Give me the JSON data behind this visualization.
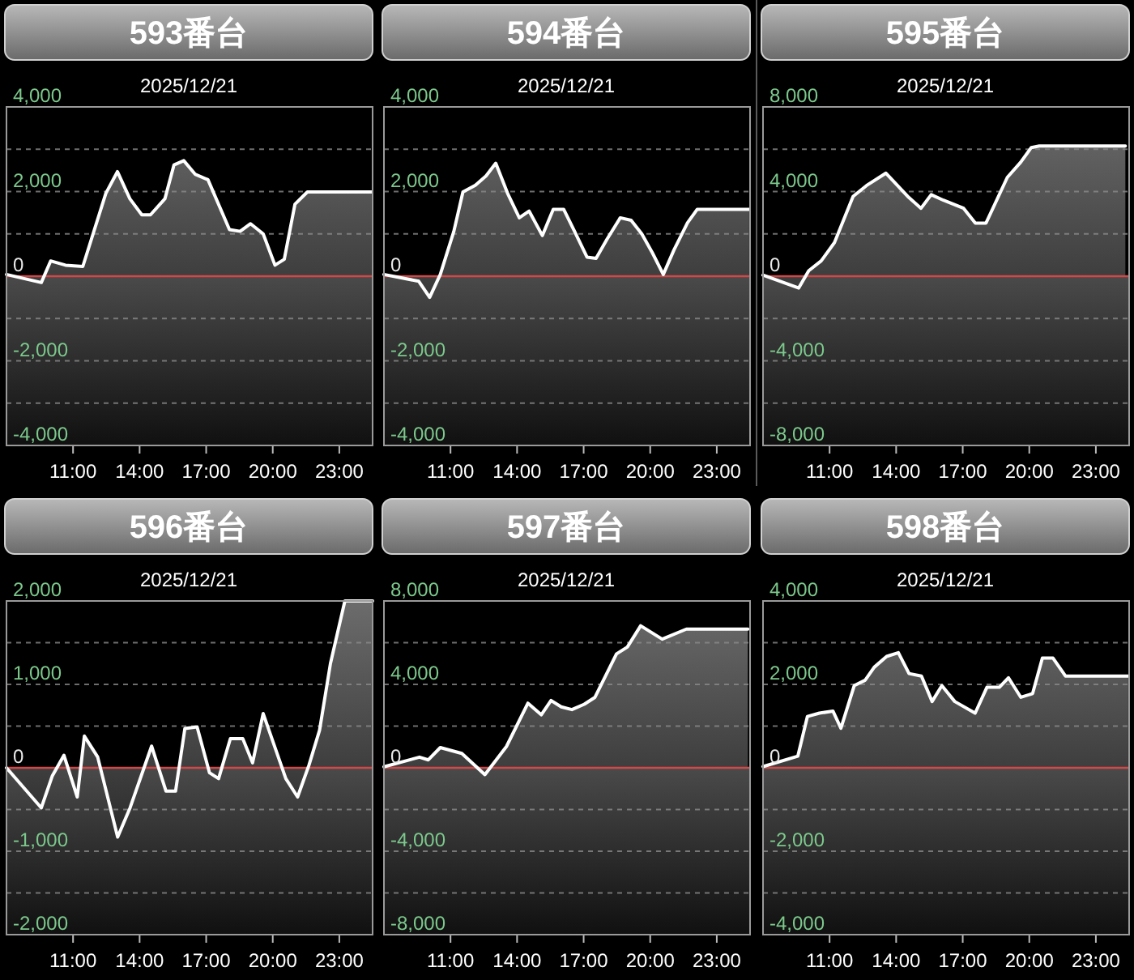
{
  "chart_data": [
    {
      "type": "area",
      "title": "593番台",
      "subtitle": "2025/12/21",
      "color": "#ffffff",
      "grid": "y",
      "xlim": [
        8,
        24.5
      ],
      "ylim": [
        -4000,
        4000
      ],
      "xticks": [
        {
          "value": 11,
          "label": "11:00"
        },
        {
          "value": 14,
          "label": "14:00"
        },
        {
          "value": 17,
          "label": "17:00"
        },
        {
          "value": 20,
          "label": "20:00"
        },
        {
          "value": 23,
          "label": "23:00"
        }
      ],
      "yticks": [
        {
          "value": -4000,
          "label": "-4,000"
        },
        {
          "value": -3000,
          "label": null
        },
        {
          "value": -2000,
          "label": "-2,000"
        },
        {
          "value": -1000,
          "label": null
        },
        {
          "value": 0,
          "label": "0"
        },
        {
          "value": 1000,
          "label": null
        },
        {
          "value": 2000,
          "label": "2,000"
        },
        {
          "value": 3000,
          "label": null
        },
        {
          "value": 4000,
          "label": "4,000"
        }
      ],
      "ref_lines": [
        {
          "axis": "y",
          "value": 0,
          "color": "#d04848"
        }
      ],
      "bands": [
        {
          "axis": "y",
          "from": -4000,
          "to": 0,
          "color": "#4a4a4a"
        }
      ],
      "x": [
        8.0,
        9.57,
        9.99,
        10.66,
        11.44,
        12.48,
        13.0,
        13.56,
        14.1,
        14.49,
        15.14,
        15.55,
        15.99,
        16.5,
        17.08,
        18.05,
        18.53,
        19.0,
        19.57,
        20.1,
        20.52,
        21.0,
        21.56,
        24.46
      ],
      "values": [
        40,
        -150,
        360,
        260,
        230,
        1960,
        2470,
        1830,
        1450,
        1450,
        1830,
        2630,
        2730,
        2410,
        2280,
        1100,
        1060,
        1240,
        1000,
        260,
        400,
        1700,
        1990,
        1990
      ]
    },
    {
      "type": "area",
      "title": "594番台",
      "subtitle": "2025/12/21",
      "color": "#ffffff",
      "grid": "y",
      "xlim": [
        8,
        24.5
      ],
      "ylim": [
        -4000,
        4000
      ],
      "xticks": [
        {
          "value": 11,
          "label": "11:00"
        },
        {
          "value": 14,
          "label": "14:00"
        },
        {
          "value": 17,
          "label": "17:00"
        },
        {
          "value": 20,
          "label": "20:00"
        },
        {
          "value": 23,
          "label": "23:00"
        }
      ],
      "yticks": [
        {
          "value": -4000,
          "label": "-4,000"
        },
        {
          "value": -3000,
          "label": null
        },
        {
          "value": -2000,
          "label": "-2,000"
        },
        {
          "value": -1000,
          "label": null
        },
        {
          "value": 0,
          "label": "0"
        },
        {
          "value": 1000,
          "label": null
        },
        {
          "value": 2000,
          "label": "2,000"
        },
        {
          "value": 3000,
          "label": null
        },
        {
          "value": 4000,
          "label": "4,000"
        }
      ],
      "ref_lines": [
        {
          "axis": "y",
          "value": 0,
          "color": "#d04848"
        }
      ],
      "bands": [
        {
          "axis": "y",
          "from": -4000,
          "to": 0,
          "color": "#4a4a4a"
        }
      ],
      "x": [
        8.0,
        9.57,
        10.06,
        10.54,
        11.15,
        11.56,
        12.12,
        12.6,
        13.04,
        13.57,
        14.1,
        14.54,
        15.14,
        15.63,
        16.1,
        16.59,
        17.15,
        17.56,
        18.05,
        18.65,
        19.14,
        19.62,
        20.1,
        20.59,
        21.07,
        21.68,
        22.12,
        24.46
      ],
      "values": [
        40,
        -120,
        -500,
        40,
        1060,
        1990,
        2150,
        2370,
        2670,
        1960,
        1380,
        1540,
        960,
        1580,
        1580,
        1060,
        450,
        420,
        870,
        1380,
        1320,
        1000,
        550,
        40,
        620,
        1260,
        1580,
        1580
      ]
    },
    {
      "type": "area",
      "title": "595番台",
      "subtitle": "2025/12/21",
      "color": "#ffffff",
      "grid": "y",
      "xlim": [
        8,
        24.5
      ],
      "ylim": [
        -8000,
        8000
      ],
      "xticks": [
        {
          "value": 11,
          "label": "11:00"
        },
        {
          "value": 14,
          "label": "14:00"
        },
        {
          "value": 17,
          "label": "17:00"
        },
        {
          "value": 20,
          "label": "20:00"
        },
        {
          "value": 23,
          "label": "23:00"
        }
      ],
      "yticks": [
        {
          "value": -8000,
          "label": "-8,000"
        },
        {
          "value": -6000,
          "label": null
        },
        {
          "value": -4000,
          "label": "-4,000"
        },
        {
          "value": -2000,
          "label": null
        },
        {
          "value": 0,
          "label": "0"
        },
        {
          "value": 2000,
          "label": null
        },
        {
          "value": 4000,
          "label": "4,000"
        },
        {
          "value": 6000,
          "label": null
        },
        {
          "value": 8000,
          "label": "8,000"
        }
      ],
      "ref_lines": [
        {
          "axis": "y",
          "value": 0,
          "color": "#d04848"
        }
      ],
      "bands": [
        {
          "axis": "y",
          "from": -8000,
          "to": 0,
          "color": "#4a4a4a"
        }
      ],
      "x": [
        8.0,
        9.61,
        10.06,
        10.62,
        11.22,
        12.06,
        12.66,
        13.54,
        14.57,
        15.12,
        15.58,
        16.13,
        17.04,
        17.57,
        18.05,
        19.01,
        19.61,
        20.09,
        20.45,
        24.33
      ],
      "values": [
        50,
        -560,
        260,
        720,
        1590,
        3770,
        4280,
        4870,
        3720,
        3210,
        3850,
        3590,
        3210,
        2510,
        2510,
        4670,
        5380,
        6080,
        6150,
        6150
      ]
    },
    {
      "type": "area",
      "title": "596番台",
      "subtitle": "2025/12/21",
      "color": "#ffffff",
      "grid": "y",
      "xlim": [
        8,
        24.5
      ],
      "ylim": [
        -2000,
        2000
      ],
      "xticks": [
        {
          "value": 11,
          "label": "11:00"
        },
        {
          "value": 14,
          "label": "14:00"
        },
        {
          "value": 17,
          "label": "17:00"
        },
        {
          "value": 20,
          "label": "20:00"
        },
        {
          "value": 23,
          "label": "23:00"
        }
      ],
      "yticks": [
        {
          "value": -2000,
          "label": "-2,000"
        },
        {
          "value": -1500,
          "label": null
        },
        {
          "value": -1000,
          "label": "-1,000"
        },
        {
          "value": -500,
          "label": null
        },
        {
          "value": 0,
          "label": "0"
        },
        {
          "value": 500,
          "label": null
        },
        {
          "value": 1000,
          "label": "1,000"
        },
        {
          "value": 1500,
          "label": null
        },
        {
          "value": 2000,
          "label": "2,000"
        }
      ],
      "ref_lines": [
        {
          "axis": "y",
          "value": 0,
          "color": "#d04848"
        }
      ],
      "bands": [
        {
          "axis": "y",
          "from": -2000,
          "to": 0,
          "color": "#4a4a4a"
        }
      ],
      "x": [
        8.0,
        9.57,
        10.06,
        10.59,
        11.19,
        11.51,
        12.11,
        13.01,
        13.57,
        14.54,
        15.19,
        15.62,
        16.04,
        16.59,
        17.15,
        17.56,
        18.09,
        18.65,
        19.09,
        19.57,
        20.59,
        21.12,
        21.63,
        22.11,
        22.6,
        23.25,
        24.5
      ],
      "values": [
        0,
        -480,
        -100,
        150,
        -350,
        380,
        130,
        -830,
        -480,
        260,
        -280,
        -280,
        470,
        490,
        -60,
        -130,
        350,
        350,
        60,
        650,
        -130,
        -350,
        30,
        450,
        1250,
        2000,
        2000
      ]
    },
    {
      "type": "area",
      "title": "597番台",
      "subtitle": "2025/12/21",
      "color": "#ffffff",
      "grid": "y",
      "xlim": [
        8,
        24.5
      ],
      "ylim": [
        -8000,
        8000
      ],
      "xticks": [
        {
          "value": 11,
          "label": "11:00"
        },
        {
          "value": 14,
          "label": "14:00"
        },
        {
          "value": 17,
          "label": "17:00"
        },
        {
          "value": 20,
          "label": "20:00"
        },
        {
          "value": 23,
          "label": "23:00"
        }
      ],
      "yticks": [
        {
          "value": -8000,
          "label": "-8,000"
        },
        {
          "value": -6000,
          "label": null
        },
        {
          "value": -4000,
          "label": "-4,000"
        },
        {
          "value": -2000,
          "label": null
        },
        {
          "value": 0,
          "label": "0"
        },
        {
          "value": 2000,
          "label": null
        },
        {
          "value": 4000,
          "label": "4,000"
        },
        {
          "value": 6000,
          "label": null
        },
        {
          "value": 8000,
          "label": "8,000"
        }
      ],
      "ref_lines": [
        {
          "axis": "y",
          "value": 0,
          "color": "#d04848"
        }
      ],
      "bands": [
        {
          "axis": "y",
          "from": -8000,
          "to": 0,
          "color": "#4a4a4a"
        }
      ],
      "x": [
        8.0,
        9.6,
        10.0,
        10.54,
        11.51,
        12.55,
        13.52,
        14.49,
        15.09,
        15.53,
        15.99,
        16.47,
        17.03,
        17.51,
        18.48,
        18.97,
        19.57,
        20.54,
        21.63,
        24.4
      ],
      "values": [
        50,
        510,
        380,
        970,
        690,
        -330,
        1020,
        3100,
        2540,
        3230,
        2920,
        2790,
        3050,
        3380,
        5460,
        5790,
        6810,
        6170,
        6650,
        6650
      ]
    },
    {
      "type": "area",
      "title": "598番台",
      "subtitle": "2025/12/21",
      "color": "#ffffff",
      "grid": "y",
      "xlim": [
        8,
        24.5
      ],
      "ylim": [
        -4000,
        4000
      ],
      "xticks": [
        {
          "value": 11,
          "label": "11:00"
        },
        {
          "value": 14,
          "label": "14:00"
        },
        {
          "value": 17,
          "label": "17:00"
        },
        {
          "value": 20,
          "label": "20:00"
        },
        {
          "value": 23,
          "label": "23:00"
        }
      ],
      "yticks": [
        {
          "value": -4000,
          "label": "-4,000"
        },
        {
          "value": -3000,
          "label": null
        },
        {
          "value": -2000,
          "label": "-2,000"
        },
        {
          "value": -1000,
          "label": null
        },
        {
          "value": 0,
          "label": "0"
        },
        {
          "value": 1000,
          "label": null
        },
        {
          "value": 2000,
          "label": "2,000"
        },
        {
          "value": 3000,
          "label": null
        },
        {
          "value": 4000,
          "label": "4,000"
        }
      ],
      "ref_lines": [
        {
          "axis": "y",
          "value": 0,
          "color": "#d04848"
        }
      ],
      "bands": [
        {
          "axis": "y",
          "from": -4000,
          "to": 0,
          "color": "#4a4a4a"
        }
      ],
      "x": [
        8.0,
        9.57,
        10.0,
        10.54,
        11.15,
        11.51,
        12.11,
        12.6,
        13.01,
        13.57,
        14.1,
        14.58,
        15.14,
        15.62,
        16.06,
        16.64,
        17.56,
        18.09,
        18.65,
        19.06,
        19.62,
        20.15,
        20.59,
        21.07,
        21.63,
        24.46
      ],
      "values": [
        30,
        280,
        1230,
        1310,
        1360,
        950,
        1970,
        2100,
        2410,
        2670,
        2760,
        2260,
        2200,
        1590,
        1970,
        1590,
        1310,
        1930,
        1930,
        2160,
        1690,
        1780,
        2630,
        2630,
        2200,
        2200
      ]
    }
  ]
}
